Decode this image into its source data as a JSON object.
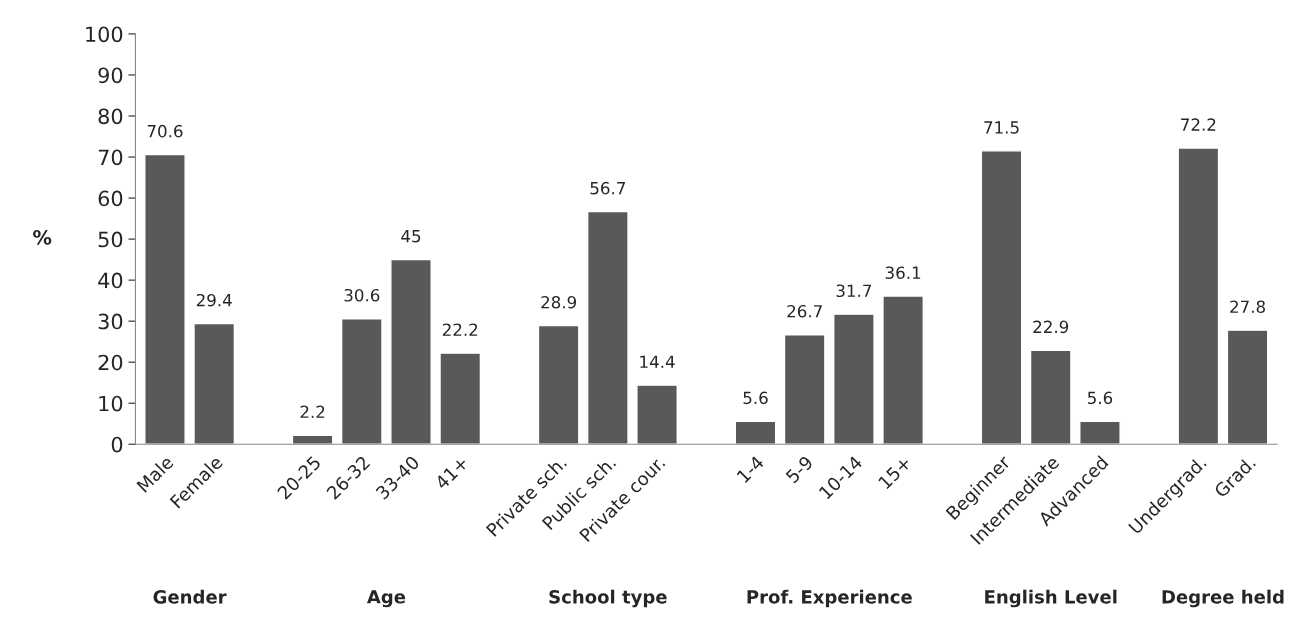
{
  "chart_data": {
    "type": "bar",
    "ylabel": "%",
    "categories": [
      "Male",
      "Female",
      null,
      "20-25",
      "26-32",
      "33-40",
      "41+",
      null,
      "Private sch.",
      "Public sch.",
      "Private cour.",
      null,
      "1-4",
      "5-9",
      "10-14",
      "15+",
      null,
      "Beginner",
      "Intermediate",
      "Advanced",
      null,
      "Undergrad.",
      "Grad."
    ],
    "values": [
      70.6,
      29.4,
      null,
      2.2,
      30.6,
      45,
      22.2,
      null,
      28.9,
      56.7,
      14.4,
      null,
      5.6,
      26.7,
      31.7,
      36.1,
      null,
      71.5,
      22.9,
      5.6,
      null,
      72.2,
      27.8
    ],
    "color": "#595959",
    "ylim": [
      0,
      100
    ],
    "yticks": [
      0,
      10,
      20,
      30,
      40,
      50,
      60,
      70,
      80,
      90,
      100
    ],
    "grid": false,
    "data_labels": true,
    "legend": false,
    "annotations": [
      "Gender",
      "Age",
      "School type",
      "Prof. Experience",
      "English Level",
      "Degree held"
    ]
  }
}
